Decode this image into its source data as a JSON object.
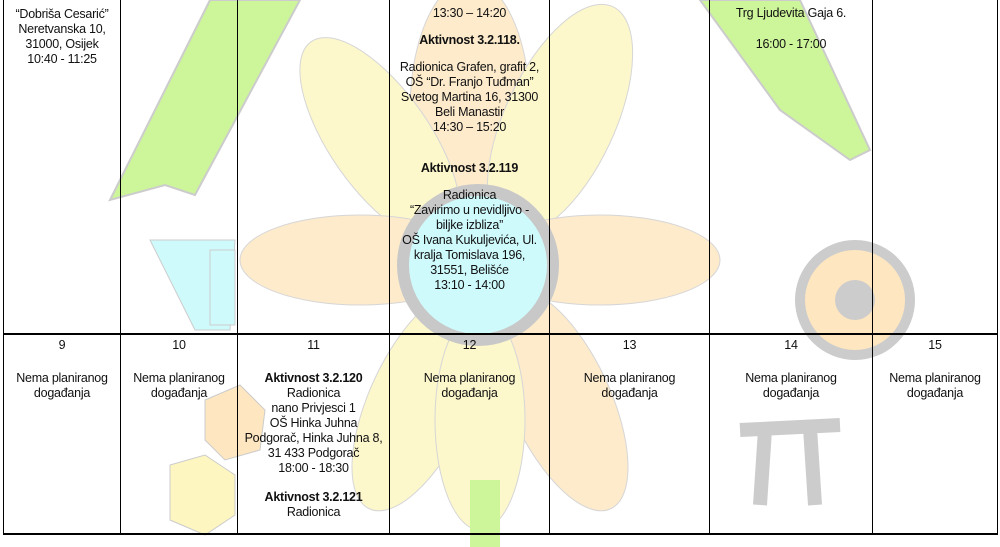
{
  "week1": {
    "mon": [
      "“Dobriša Cesarić”",
      "Neretvanska 10,",
      "31000, Osijek",
      "10:40 - 11:25"
    ],
    "thu": {
      "time_top": "13:30 – 14:20",
      "act1_title": "Aktivnost 3.2.118.",
      "act1_lines": [
        "Radionica Grafen, grafit 2,",
        "OŠ “Dr. Franjo Tuđman”",
        "Svetog Martina 16, 31300",
        "Beli Manastir",
        "14:30 – 15:20"
      ],
      "act2_title": "Aktivnost 3.2.119",
      "act2_lines": [
        "Radionica",
        "“Zavirimo u nevidljivo -",
        "biljke izbliza”",
        "OŠ Ivana Kukuljevića, Ul.",
        "kralja Tomislava 196,",
        "31551, Belišće",
        "13:10 - 14:00"
      ]
    },
    "sat": [
      "Trg Ljudevita Gaja 6.",
      "16:00 - 17:00"
    ]
  },
  "week2": {
    "days": [
      "9",
      "10",
      "11",
      "12",
      "13",
      "14",
      "15"
    ],
    "no_event": [
      "Nema planiranog",
      "događanja"
    ],
    "wed": {
      "act1_title": "Aktivnost 3.2.120",
      "act1_lines": [
        "Radionica",
        "nano Privjesci 1",
        "OŠ Hinka Juhna",
        "Podgorač, Hinka Juhna 8,",
        "31 433 Podgorač",
        "18:00 - 18:30"
      ],
      "act2_title": "Aktivnost 3.2.121",
      "act2_lines": [
        "Radionica"
      ]
    }
  }
}
